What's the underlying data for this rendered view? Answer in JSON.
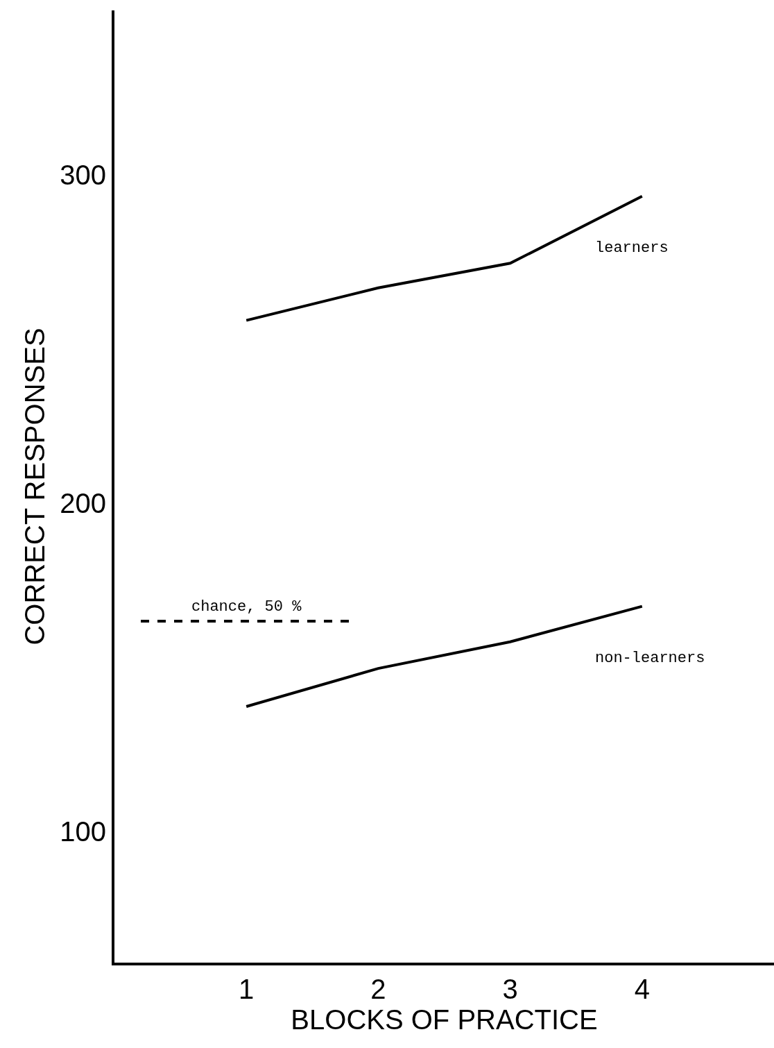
{
  "chart_data": {
    "type": "line",
    "xlabel": "BLOCKS OF PRACTICE",
    "ylabel": "CORRECT RESPONSES",
    "x": [
      1,
      2,
      3,
      4
    ],
    "series": [
      {
        "name": "learners",
        "color": "#000000",
        "values": [
          255.6,
          265.5,
          273,
          293.4
        ]
      },
      {
        "name": "non-learners",
        "color": "#000000",
        "values": [
          138,
          149.6,
          157.7,
          168.5
        ]
      },
      {
        "name": "chance, 50 %",
        "color": "#000000",
        "x": [
          0.2,
          1.8
        ],
        "values": [
          164,
          164
        ],
        "line_style": "dashed"
      }
    ],
    "xlim": [
      0,
      5
    ],
    "ylim": [
      60,
      350
    ],
    "xticks": [
      1,
      2,
      3,
      4
    ],
    "yticks": [
      100,
      200,
      300
    ],
    "grid": false,
    "legend": false,
    "marker": "none",
    "line_style": "solid"
  }
}
